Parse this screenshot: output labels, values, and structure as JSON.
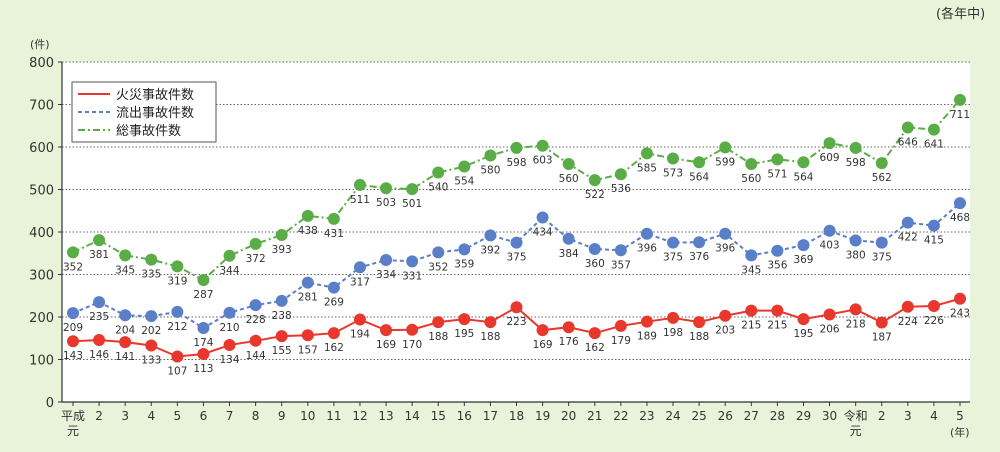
{
  "chart_data": {
    "type": "line",
    "note": "(各年中)",
    "y_unit": "(件)",
    "x_unit": "(年)",
    "ylim": [
      0,
      800
    ],
    "yticks": [
      0,
      100,
      200,
      300,
      400,
      500,
      600,
      700,
      800
    ],
    "grid": true,
    "legend_position": "top-left",
    "categories": [
      "平成元",
      "2",
      "3",
      "4",
      "5",
      "6",
      "7",
      "8",
      "9",
      "10",
      "11",
      "12",
      "13",
      "14",
      "15",
      "16",
      "17",
      "18",
      "19",
      "20",
      "21",
      "22",
      "23",
      "24",
      "25",
      "26",
      "27",
      "28",
      "29",
      "30",
      "令和元",
      "2",
      "3",
      "4",
      "5"
    ],
    "category_labels": [
      [
        "平成",
        "元"
      ],
      [
        "2"
      ],
      [
        "3"
      ],
      [
        "4"
      ],
      [
        "5"
      ],
      [
        "6"
      ],
      [
        "7"
      ],
      [
        "8"
      ],
      [
        "9"
      ],
      [
        "10"
      ],
      [
        "11"
      ],
      [
        "12"
      ],
      [
        "13"
      ],
      [
        "14"
      ],
      [
        "15"
      ],
      [
        "16"
      ],
      [
        "17"
      ],
      [
        "18"
      ],
      [
        "19"
      ],
      [
        "20"
      ],
      [
        "21"
      ],
      [
        "22"
      ],
      [
        "23"
      ],
      [
        "24"
      ],
      [
        "25"
      ],
      [
        "26"
      ],
      [
        "27"
      ],
      [
        "28"
      ],
      [
        "29"
      ],
      [
        "30"
      ],
      [
        "令和",
        "元"
      ],
      [
        "2"
      ],
      [
        "3"
      ],
      [
        "4"
      ],
      [
        "5"
      ]
    ],
    "series": [
      {
        "name": "火災事故件数",
        "color": "#e8382e",
        "dash": "solid",
        "values": [
          143,
          146,
          141,
          133,
          107,
          113,
          134,
          144,
          155,
          157,
          162,
          194,
          169,
          170,
          188,
          195,
          188,
          223,
          169,
          176,
          162,
          179,
          189,
          198,
          188,
          203,
          215,
          215,
          195,
          206,
          218,
          187,
          224,
          226,
          243
        ]
      },
      {
        "name": "流出事故件数",
        "color": "#5a7fc8",
        "dash": "dashed",
        "values": [
          209,
          235,
          204,
          202,
          212,
          174,
          210,
          228,
          238,
          281,
          269,
          317,
          334,
          331,
          352,
          359,
          392,
          375,
          434,
          384,
          360,
          357,
          396,
          375,
          376,
          396,
          345,
          356,
          369,
          403,
          380,
          375,
          422,
          415,
          468
        ]
      },
      {
        "name": "総事故件数",
        "color": "#5aad46",
        "dash": "dashdot",
        "values": [
          352,
          381,
          345,
          335,
          319,
          287,
          344,
          372,
          393,
          438,
          431,
          511,
          503,
          501,
          540,
          554,
          580,
          598,
          603,
          560,
          522,
          536,
          585,
          573,
          564,
          599,
          560,
          571,
          564,
          609,
          598,
          562,
          646,
          641,
          711
        ]
      }
    ]
  }
}
